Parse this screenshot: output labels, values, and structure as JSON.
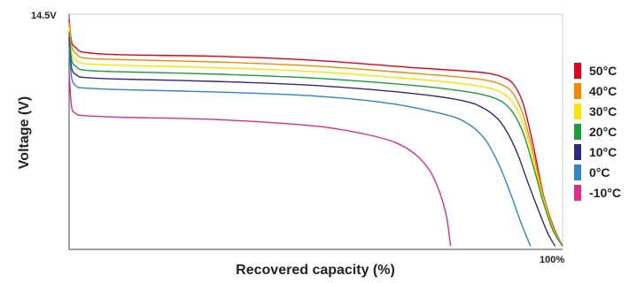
{
  "chart_data": {
    "type": "line",
    "title": "",
    "xlabel": "Recovered capacity (%)",
    "ylabel": "Voltage (V)",
    "y_top_label": "14.5V",
    "x_end_label": "100%",
    "xlim": [
      0,
      100
    ],
    "ylim": [
      0,
      14.5
    ],
    "grid": false,
    "legend_position": "right",
    "series": [
      {
        "name": "50°C",
        "color": "#e3001b",
        "points": [
          [
            0,
            14.2
          ],
          [
            0.5,
            12.8
          ],
          [
            1.5,
            12.4
          ],
          [
            3,
            12.15
          ],
          [
            10,
            12.0
          ],
          [
            30,
            11.9
          ],
          [
            50,
            11.65
          ],
          [
            70,
            11.2
          ],
          [
            80,
            11.0
          ],
          [
            85,
            10.85
          ],
          [
            88,
            10.6
          ],
          [
            90,
            10.2
          ],
          [
            92,
            9.0
          ],
          [
            94,
            6.5
          ],
          [
            96,
            3.5
          ],
          [
            98,
            1.5
          ],
          [
            100,
            0.2
          ]
        ]
      },
      {
        "name": "40°C",
        "color": "#f08b00",
        "points": [
          [
            0,
            14.0
          ],
          [
            0.5,
            12.5
          ],
          [
            1.5,
            12.05
          ],
          [
            3,
            11.8
          ],
          [
            10,
            11.7
          ],
          [
            30,
            11.55
          ],
          [
            50,
            11.3
          ],
          [
            70,
            10.85
          ],
          [
            80,
            10.6
          ],
          [
            85,
            10.4
          ],
          [
            88,
            10.1
          ],
          [
            90,
            9.6
          ],
          [
            92,
            8.3
          ],
          [
            94,
            6.0
          ],
          [
            96,
            3.4
          ],
          [
            98,
            1.4
          ],
          [
            100,
            0.2
          ]
        ]
      },
      {
        "name": "30°C",
        "color": "#f5e600",
        "points": [
          [
            0,
            13.7
          ],
          [
            0.5,
            12.1
          ],
          [
            1.5,
            11.65
          ],
          [
            3,
            11.45
          ],
          [
            10,
            11.35
          ],
          [
            30,
            11.2
          ],
          [
            50,
            10.95
          ],
          [
            70,
            10.5
          ],
          [
            80,
            10.2
          ],
          [
            85,
            9.95
          ],
          [
            88,
            9.6
          ],
          [
            90,
            9.0
          ],
          [
            92,
            7.8
          ],
          [
            94,
            5.6
          ],
          [
            96,
            3.2
          ],
          [
            98,
            1.3
          ],
          [
            100,
            0.2
          ]
        ]
      },
      {
        "name": "20°C",
        "color": "#16a03a",
        "points": [
          [
            0,
            13.4
          ],
          [
            0.5,
            11.7
          ],
          [
            1.5,
            11.25
          ],
          [
            3,
            11.05
          ],
          [
            10,
            10.95
          ],
          [
            30,
            10.8
          ],
          [
            50,
            10.55
          ],
          [
            70,
            10.1
          ],
          [
            80,
            9.75
          ],
          [
            85,
            9.45
          ],
          [
            88,
            9.05
          ],
          [
            90,
            8.4
          ],
          [
            92,
            7.2
          ],
          [
            94,
            5.2
          ],
          [
            96,
            3.0
          ],
          [
            98,
            1.2
          ],
          [
            100,
            0.2
          ]
        ]
      },
      {
        "name": "10°C",
        "color": "#2e2a7e",
        "points": [
          [
            0,
            13.1
          ],
          [
            0.5,
            11.2
          ],
          [
            1.5,
            10.75
          ],
          [
            3,
            10.6
          ],
          [
            10,
            10.5
          ],
          [
            30,
            10.35
          ],
          [
            50,
            10.1
          ],
          [
            70,
            9.6
          ],
          [
            80,
            9.15
          ],
          [
            84,
            8.7
          ],
          [
            87,
            8.0
          ],
          [
            89,
            7.1
          ],
          [
            91,
            5.8
          ],
          [
            93,
            4.1
          ],
          [
            95,
            2.5
          ],
          [
            97,
            1.0
          ],
          [
            98.5,
            0.2
          ]
        ]
      },
      {
        "name": "0°C",
        "color": "#2f86c5",
        "points": [
          [
            0,
            12.6
          ],
          [
            0.5,
            10.6
          ],
          [
            1.5,
            10.05
          ],
          [
            3,
            9.95
          ],
          [
            10,
            9.85
          ],
          [
            30,
            9.7
          ],
          [
            50,
            9.45
          ],
          [
            65,
            9.0
          ],
          [
            75,
            8.4
          ],
          [
            80,
            7.9
          ],
          [
            84,
            6.9
          ],
          [
            87,
            5.3
          ],
          [
            89.5,
            3.4
          ],
          [
            91.5,
            1.7
          ],
          [
            93.5,
            0.2
          ]
        ]
      },
      {
        "name": "-10°C",
        "color": "#de2d8c",
        "points": [
          [
            0,
            11.0
          ],
          [
            0.5,
            8.8
          ],
          [
            1.5,
            8.35
          ],
          [
            3,
            8.25
          ],
          [
            10,
            8.15
          ],
          [
            30,
            8.0
          ],
          [
            50,
            7.6
          ],
          [
            60,
            7.1
          ],
          [
            66,
            6.6
          ],
          [
            70,
            5.9
          ],
          [
            73,
            4.9
          ],
          [
            75,
            3.6
          ],
          [
            76.5,
            2.0
          ],
          [
            77.3,
            0.2
          ]
        ]
      }
    ]
  }
}
